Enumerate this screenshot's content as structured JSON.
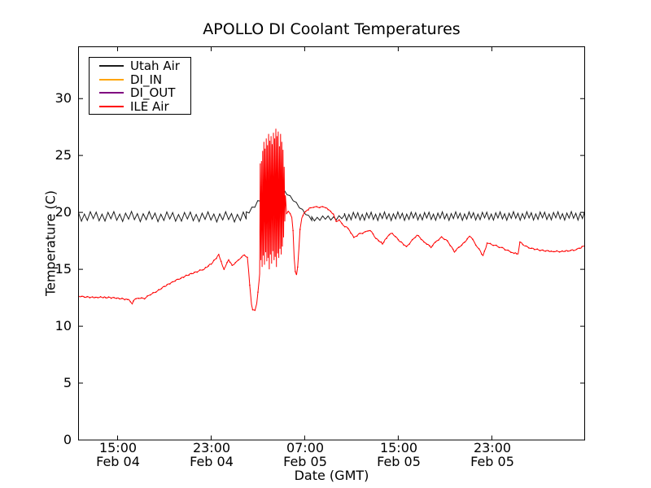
{
  "chart_data": {
    "type": "line",
    "title": "APOLLO DI Coolant Temperatures",
    "xlabel": "Date (GMT)",
    "ylabel": "Temperature (C)",
    "ylim": [
      0,
      34.55
    ],
    "xlim_hours": [
      11.66,
      54.94
    ],
    "grid": false,
    "legend_position": "upper left",
    "time_unit": "hours from Feb 04 00:00 GMT",
    "value_unit": "deg C",
    "y_ticks": [
      0,
      5,
      10,
      15,
      20,
      25,
      30
    ],
    "x_ticks": [
      {
        "hours": 15,
        "time": "15:00",
        "date": "Feb 04"
      },
      {
        "hours": 23,
        "time": "23:00",
        "date": "Feb 04"
      },
      {
        "hours": 31,
        "time": "07:00",
        "date": "Feb 05"
      },
      {
        "hours": 39,
        "time": "15:00",
        "date": "Feb 05"
      },
      {
        "hours": 47,
        "time": "23:00",
        "date": "Feb 05"
      }
    ],
    "series": [
      {
        "name": "Utah Air",
        "color": "#1c1c1c",
        "style": "zigzag-oscillation",
        "segments": [
          {
            "t0": 11.66,
            "t1": 26.0,
            "base0": 19.65,
            "base1": 19.6,
            "amp": 0.45,
            "period": 0.5
          },
          {
            "t0": 26.0,
            "t1": 28.7,
            "base0": 19.9,
            "base1": 22.5,
            "amp": 0.2,
            "period": 0.5
          },
          {
            "t0": 28.7,
            "t1": 31.6,
            "base0": 22.5,
            "base1": 19.35,
            "amp": 0.12,
            "period": 0.55
          },
          {
            "t0": 31.6,
            "t1": 34.4,
            "base0": 19.45,
            "base1": 19.55,
            "amp": 0.22,
            "period": 0.45
          },
          {
            "t0": 34.4,
            "t1": 54.94,
            "base0": 19.65,
            "base1": 19.7,
            "amp": 0.38,
            "period": 0.38
          }
        ]
      },
      {
        "name": "DI_IN",
        "color": "#ffa500",
        "style": "line",
        "points": [],
        "note": "no visible data"
      },
      {
        "name": "DI_OUT",
        "color": "#800080",
        "style": "line",
        "points": [],
        "note": "no visible data"
      },
      {
        "name": "ILE Air",
        "color": "#ff0000",
        "style": "line-with-burst",
        "points_pre": [
          [
            11.66,
            12.65
          ],
          [
            12.4,
            12.6
          ],
          [
            13.2,
            12.55
          ],
          [
            14.0,
            12.5
          ],
          [
            14.8,
            12.45
          ],
          [
            15.5,
            12.4
          ],
          [
            15.95,
            12.35
          ],
          [
            16.1,
            12.15
          ],
          [
            16.25,
            11.95
          ],
          [
            16.45,
            12.35
          ],
          [
            16.8,
            12.45
          ],
          [
            17.3,
            12.4
          ],
          [
            17.8,
            12.75
          ],
          [
            18.4,
            13.1
          ],
          [
            19.0,
            13.5
          ],
          [
            19.7,
            13.9
          ],
          [
            20.4,
            14.2
          ],
          [
            21.1,
            14.5
          ],
          [
            21.8,
            14.75
          ],
          [
            22.4,
            15.0
          ],
          [
            23.0,
            15.45
          ],
          [
            23.45,
            15.95
          ],
          [
            23.65,
            16.3
          ],
          [
            23.85,
            15.7
          ],
          [
            24.1,
            15.0
          ],
          [
            24.5,
            15.85
          ],
          [
            24.8,
            15.35
          ],
          [
            25.2,
            15.7
          ],
          [
            25.85,
            16.25
          ],
          [
            26.1,
            16.05
          ],
          [
            26.3,
            13.6
          ],
          [
            26.45,
            11.9
          ],
          [
            26.55,
            11.45
          ],
          [
            26.75,
            11.4
          ],
          [
            26.9,
            12.0
          ],
          [
            27.0,
            13.0
          ],
          [
            27.1,
            14.0
          ]
        ],
        "burst": {
          "t0": 27.15,
          "t1": 29.4,
          "tops": [
            24.3,
            24.5,
            25.4,
            26.2,
            25.6,
            26.5,
            25.9,
            26.9,
            26.3,
            26.7,
            26.0,
            27.0,
            26.5,
            27.35,
            26.7,
            27.1,
            25.8,
            26.9,
            26.2,
            25.5,
            24.0,
            21.5
          ],
          "bottoms": [
            14.6,
            15.8,
            15.2,
            16.2,
            15.4,
            16.5,
            15.7,
            16.0,
            15.0,
            16.3,
            15.5,
            16.6,
            15.8,
            16.1,
            15.2,
            16.4,
            16.0,
            16.8,
            16.3,
            17.0,
            17.8,
            19.2
          ]
        },
        "points_post": [
          [
            29.45,
            19.9
          ],
          [
            29.6,
            20.1
          ],
          [
            29.75,
            19.9
          ],
          [
            29.9,
            19.55
          ],
          [
            30.0,
            18.4
          ],
          [
            30.1,
            16.0
          ],
          [
            30.2,
            14.8
          ],
          [
            30.3,
            14.5
          ],
          [
            30.4,
            15.2
          ],
          [
            30.5,
            16.8
          ],
          [
            30.6,
            18.5
          ],
          [
            30.75,
            19.5
          ],
          [
            30.95,
            19.95
          ],
          [
            31.2,
            20.2
          ],
          [
            31.5,
            20.4
          ],
          [
            31.9,
            20.5
          ],
          [
            32.4,
            20.5
          ],
          [
            32.8,
            20.4
          ],
          [
            33.1,
            20.2
          ],
          [
            33.45,
            19.85
          ],
          [
            33.7,
            19.2
          ],
          [
            33.95,
            19.35
          ],
          [
            34.3,
            18.85
          ],
          [
            34.7,
            18.6
          ],
          [
            35.2,
            17.8
          ],
          [
            35.6,
            18.1
          ],
          [
            36.3,
            18.35
          ],
          [
            36.6,
            18.4
          ],
          [
            37.1,
            17.7
          ],
          [
            37.65,
            17.2
          ],
          [
            38.1,
            17.9
          ],
          [
            38.5,
            18.15
          ],
          [
            39.0,
            17.6
          ],
          [
            39.7,
            17.0
          ],
          [
            40.2,
            17.6
          ],
          [
            40.6,
            18.0
          ],
          [
            41.2,
            17.4
          ],
          [
            41.8,
            16.9
          ],
          [
            42.3,
            17.5
          ],
          [
            42.7,
            17.85
          ],
          [
            43.2,
            17.5
          ],
          [
            43.8,
            16.5
          ],
          [
            44.3,
            17.0
          ],
          [
            44.8,
            17.5
          ],
          [
            45.1,
            17.9
          ],
          [
            45.5,
            17.4
          ],
          [
            45.9,
            16.8
          ],
          [
            46.25,
            16.2
          ],
          [
            46.6,
            17.3
          ],
          [
            47.0,
            17.15
          ],
          [
            47.5,
            17.0
          ],
          [
            48.0,
            16.85
          ],
          [
            48.5,
            16.6
          ],
          [
            48.9,
            16.4
          ],
          [
            49.25,
            16.35
          ],
          [
            49.4,
            17.4
          ],
          [
            49.9,
            17.05
          ],
          [
            50.4,
            16.85
          ],
          [
            51.0,
            16.7
          ],
          [
            51.6,
            16.6
          ],
          [
            52.2,
            16.55
          ],
          [
            52.9,
            16.55
          ],
          [
            53.5,
            16.6
          ],
          [
            54.0,
            16.65
          ],
          [
            54.5,
            16.85
          ],
          [
            54.94,
            17.05
          ]
        ]
      }
    ]
  }
}
